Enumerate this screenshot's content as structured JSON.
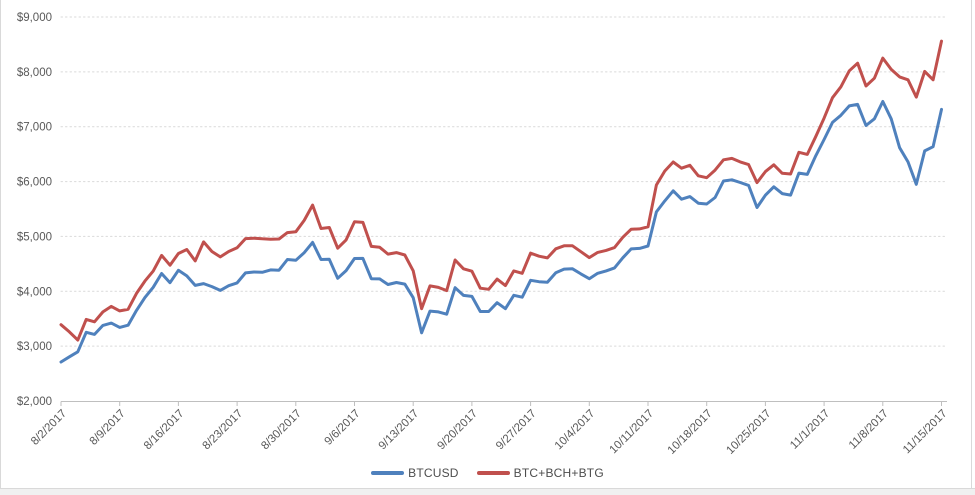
{
  "chart_data": {
    "type": "line",
    "title": "",
    "xlabel": "",
    "ylabel": "",
    "legend_position": "bottom",
    "grid": "horizontal-dotted",
    "y_axis": {
      "min": 2000,
      "max": 9000,
      "step": 1000
    },
    "y_tick_labels": [
      "$2,000",
      "$3,000",
      "$4,000",
      "$5,000",
      "$6,000",
      "$7,000",
      "$8,000",
      "$9,000"
    ],
    "x_tick_labels": [
      "8/2/2017",
      "8/9/2017",
      "8/16/2017",
      "8/23/2017",
      "8/30/2017",
      "9/6/2017",
      "9/13/2017",
      "9/20/2017",
      "9/27/2017",
      "10/4/2017",
      "10/11/2017",
      "10/18/2017",
      "10/25/2017",
      "11/1/2017",
      "11/8/2017",
      "11/15/2017"
    ],
    "x_tick_interval_days": 7,
    "x": [
      "8/2/2017",
      "8/3/2017",
      "8/4/2017",
      "8/5/2017",
      "8/6/2017",
      "8/7/2017",
      "8/8/2017",
      "8/9/2017",
      "8/10/2017",
      "8/11/2017",
      "8/12/2017",
      "8/13/2017",
      "8/14/2017",
      "8/15/2017",
      "8/16/2017",
      "8/17/2017",
      "8/18/2017",
      "8/19/2017",
      "8/20/2017",
      "8/21/2017",
      "8/22/2017",
      "8/23/2017",
      "8/24/2017",
      "8/25/2017",
      "8/26/2017",
      "8/27/2017",
      "8/28/2017",
      "8/29/2017",
      "8/30/2017",
      "8/31/2017",
      "9/1/2017",
      "9/2/2017",
      "9/3/2017",
      "9/4/2017",
      "9/5/2017",
      "9/6/2017",
      "9/7/2017",
      "9/8/2017",
      "9/9/2017",
      "9/10/2017",
      "9/11/2017",
      "9/12/2017",
      "9/13/2017",
      "9/14/2017",
      "9/15/2017",
      "9/16/2017",
      "9/17/2017",
      "9/18/2017",
      "9/19/2017",
      "9/20/2017",
      "9/21/2017",
      "9/22/2017",
      "9/23/2017",
      "9/24/2017",
      "9/25/2017",
      "9/26/2017",
      "9/27/2017",
      "9/28/2017",
      "9/29/2017",
      "9/30/2017",
      "10/1/2017",
      "10/2/2017",
      "10/3/2017",
      "10/4/2017",
      "10/5/2017",
      "10/6/2017",
      "10/7/2017",
      "10/8/2017",
      "10/9/2017",
      "10/10/2017",
      "10/11/2017",
      "10/12/2017",
      "10/13/2017",
      "10/14/2017",
      "10/15/2017",
      "10/16/2017",
      "10/17/2017",
      "10/18/2017",
      "10/19/2017",
      "10/20/2017",
      "10/21/2017",
      "10/22/2017",
      "10/23/2017",
      "10/24/2017",
      "10/25/2017",
      "10/26/2017",
      "10/27/2017",
      "10/28/2017",
      "10/29/2017",
      "10/30/2017",
      "10/31/2017",
      "11/1/2017",
      "11/2/2017",
      "11/3/2017",
      "11/4/2017",
      "11/5/2017",
      "11/6/2017",
      "11/7/2017",
      "11/8/2017",
      "11/9/2017",
      "11/10/2017",
      "11/11/2017",
      "11/12/2017",
      "11/13/2017",
      "11/14/2017",
      "11/15/2017"
    ],
    "series": [
      {
        "name": "BTCUSD",
        "color": "#4F81BD",
        "values": [
          2711,
          2805,
          2896,
          3253,
          3214,
          3379,
          3420,
          3342,
          3381,
          3651,
          3885,
          4073,
          4325,
          4156,
          4383,
          4281,
          4108,
          4140,
          4086,
          4016,
          4101,
          4152,
          4335,
          4352,
          4346,
          4390,
          4384,
          4579,
          4565,
          4703,
          4892,
          4579,
          4583,
          4236,
          4377,
          4597,
          4600,
          4229,
          4226,
          4123,
          4161,
          4131,
          3883,
          3243,
          3638,
          3625,
          3583,
          4065,
          3925,
          3906,
          3631,
          3631,
          3792,
          3683,
          3926,
          3892,
          4201,
          4175,
          4163,
          4339,
          4404,
          4409,
          4317,
          4229,
          4328,
          4371,
          4427,
          4610,
          4772,
          4782,
          4826,
          5447,
          5647,
          5832,
          5678,
          5726,
          5606,
          5591,
          5709,
          6011,
          6032,
          5983,
          5930,
          5527,
          5751,
          5905,
          5781,
          5753,
          6154,
          6131,
          6468,
          6767,
          7079,
          7208,
          7380,
          7407,
          7023,
          7144,
          7460,
          7144,
          6618,
          6358,
          5950,
          6559,
          6636,
          7315
        ]
      },
      {
        "name": "BTC+BCH+BTG",
        "color": "#C0504D",
        "values": [
          3391,
          3260,
          3111,
          3488,
          3444,
          3624,
          3725,
          3642,
          3671,
          3961,
          4185,
          4368,
          4655,
          4476,
          4688,
          4761,
          4553,
          4900,
          4726,
          4626,
          4726,
          4792,
          4960,
          4967,
          4956,
          4950,
          4954,
          5069,
          5085,
          5293,
          5572,
          5144,
          5163,
          4786,
          4937,
          5267,
          5255,
          4819,
          4801,
          4678,
          4706,
          4661,
          4373,
          3683,
          4098,
          4070,
          4013,
          4570,
          4410,
          4366,
          4056,
          4036,
          4222,
          4103,
          4371,
          4327,
          4696,
          4640,
          4608,
          4774,
          4829,
          4829,
          4722,
          4614,
          4708,
          4746,
          4797,
          4985,
          5132,
          5137,
          5176,
          5937,
          6192,
          6357,
          6243,
          6296,
          6106,
          6071,
          6209,
          6396,
          6422,
          6358,
          6310,
          5982,
          6181,
          6305,
          6151,
          6138,
          6534,
          6496,
          6818,
          7157,
          7529,
          7728,
          8020,
          8157,
          7743,
          7884,
          8250,
          8044,
          7908,
          7856,
          7540,
          8009,
          7856,
          8560
        ]
      }
    ]
  },
  "colors": {
    "gridline": "#D9D9D9",
    "axis_line": "#BFBFBF",
    "tick_label": "#595959",
    "legend_text": "#4d4d4d",
    "border": "#D9D9D9",
    "footer_strip": "#F0F0F0",
    "background": "#FFFFFF"
  }
}
